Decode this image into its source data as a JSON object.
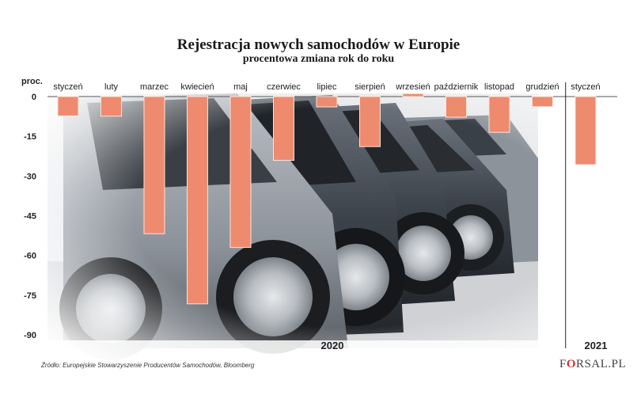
{
  "header": {
    "title": "Rejestracja nowych samochodów w Europie",
    "subtitle": "procentowa zmiana rok do roku"
  },
  "footer": {
    "source": "Źródło: Europejskie Stowarzyszenie Producentów Samochodów, Bloomberg",
    "brand": {
      "part1": "F",
      "part2": "O",
      "part3": "RSAL.PL"
    }
  },
  "colors": {
    "bar": "#ee8a6e",
    "bar_outline": "#fbe3da",
    "axis": "#555555",
    "divider": "#222222"
  },
  "background": {
    "icon": "parked-cars-photo"
  },
  "chart_data": {
    "type": "bar",
    "title": "Rejestracja nowych samochodów w Europie",
    "subtitle": "procentowa zmiana rok do roku",
    "ylabel": "proc.",
    "ylim": [
      -95,
      0
    ],
    "yticks": [
      0,
      -15,
      -30,
      -45,
      -60,
      -75,
      -90
    ],
    "ytick_labels": [
      "0",
      "-15",
      "-30",
      "-45",
      "-60",
      "-75",
      "-90"
    ],
    "grid": false,
    "categories": [
      "styczeń",
      "luty",
      "marzec",
      "kwiecień",
      "maj",
      "czerwiec",
      "lipiec",
      "sierpień",
      "wrzesień",
      "październik",
      "listopad",
      "grudzień",
      "styczeń"
    ],
    "values": [
      -7.3,
      -7.4,
      -51.8,
      -78.3,
      -57.0,
      -24.1,
      -3.9,
      -18.9,
      1.1,
      -7.8,
      -13.5,
      -3.8,
      -25.7
    ],
    "groups": [
      {
        "label": "2020",
        "count": 12
      },
      {
        "label": "2021",
        "count": 1
      }
    ]
  }
}
